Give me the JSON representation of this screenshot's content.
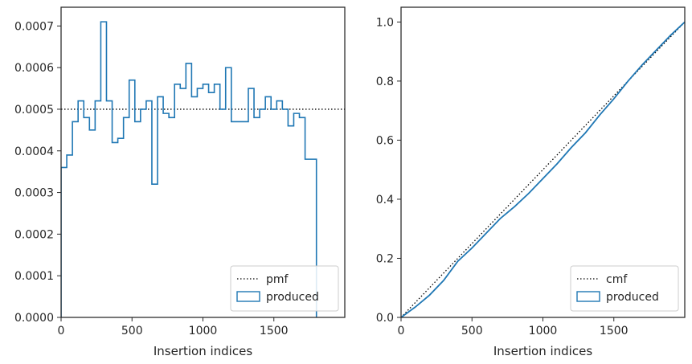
{
  "chart_data": [
    {
      "type": "histogram-step",
      "xlabel": "Insertion indices",
      "ylabel": "",
      "xlim": [
        0,
        2000
      ],
      "ylim": [
        0,
        0.000745
      ],
      "xticks": [
        0,
        500,
        1000,
        1500
      ],
      "xtick_labels": [
        "0",
        "500",
        "1000",
        "1500"
      ],
      "yticks": [
        0,
        0.0001,
        0.0002,
        0.0003,
        0.0004,
        0.0005,
        0.0006,
        0.0007
      ],
      "ytick_labels": [
        "0.0000",
        "0.0001",
        "0.0002",
        "0.0003",
        "0.0004",
        "0.0005",
        "0.0006",
        "0.0007"
      ],
      "bin_width": 40,
      "bin_edges_start": 0,
      "series": [
        {
          "name": "pmf",
          "style": "dotted",
          "color": "#000000",
          "x": [
            0,
            2000
          ],
          "y": [
            0.0005,
            0.0005
          ]
        },
        {
          "name": "produced",
          "style": "step",
          "color": "#1f77b4",
          "values": [
            0.00036,
            0.00039,
            0.00047,
            0.00052,
            0.00048,
            0.00045,
            0.00052,
            0.00071,
            0.00052,
            0.00042,
            0.00043,
            0.00048,
            0.00057,
            0.00047,
            0.0005,
            0.00052,
            0.00032,
            0.00053,
            0.00049,
            0.00048,
            0.00056,
            0.00055,
            0.00061,
            0.00053,
            0.00055,
            0.00056,
            0.00054,
            0.00056,
            0.0005,
            0.0006,
            0.00047,
            0.00047,
            0.00047,
            0.00055,
            0.00048,
            0.0005,
            0.00053,
            0.0005,
            0.00052,
            0.0005,
            0.00046,
            0.00049,
            0.00048,
            0.00038,
            0.00038
          ]
        }
      ],
      "legend": {
        "placement": "lower-right",
        "entries": [
          "pmf",
          "produced"
        ]
      }
    },
    {
      "type": "line",
      "xlabel": "Insertion indices",
      "ylabel": "",
      "xlim": [
        0,
        2000
      ],
      "ylim": [
        0,
        1.05
      ],
      "xticks": [
        0,
        500,
        1000,
        1500
      ],
      "xtick_labels": [
        "0",
        "500",
        "1000",
        "1500"
      ],
      "yticks": [
        0,
        0.2,
        0.4,
        0.6,
        0.8,
        1.0
      ],
      "ytick_labels": [
        "0.0",
        "0.2",
        "0.4",
        "0.6",
        "0.8",
        "1.0"
      ],
      "series": [
        {
          "name": "cmf",
          "style": "dotted",
          "color": "#000000",
          "x": [
            0,
            2000
          ],
          "y": [
            0,
            1.0
          ]
        },
        {
          "name": "produced",
          "style": "solid",
          "color": "#1f77b4",
          "x": [
            0,
            100,
            200,
            300,
            400,
            500,
            600,
            700,
            800,
            900,
            1000,
            1100,
            1200,
            1300,
            1400,
            1500,
            1600,
            1700,
            1800,
            1900,
            2000
          ],
          "y": [
            0,
            0.035,
            0.075,
            0.125,
            0.19,
            0.235,
            0.285,
            0.335,
            0.375,
            0.42,
            0.47,
            0.52,
            0.575,
            0.625,
            0.685,
            0.74,
            0.8,
            0.855,
            0.905,
            0.955,
            1.0
          ]
        }
      ],
      "legend": {
        "placement": "lower-right",
        "entries": [
          "cmf",
          "produced"
        ]
      }
    }
  ]
}
